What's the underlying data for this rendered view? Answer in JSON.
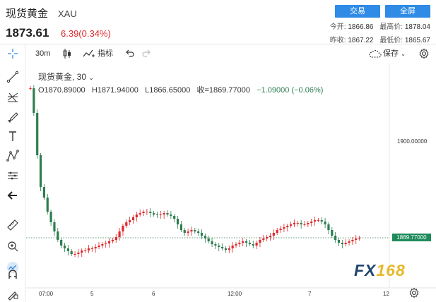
{
  "header": {
    "name": "现货黄金",
    "symbol": "XAU",
    "price": "1873.61",
    "change": "6.39(0.34%)",
    "trade_label": "交易",
    "fullscreen_label": "全屏",
    "stats": [
      {
        "label": "今开:",
        "value": "1866.86"
      },
      {
        "label": "最高价:",
        "value": "1878.04"
      },
      {
        "label": "昨收:",
        "value": "1867.22"
      },
      {
        "label": "最低价:",
        "value": "1865.67"
      }
    ]
  },
  "toolbar": {
    "interval": "30m",
    "indicator_label": "指标",
    "save_label": "保存"
  },
  "legend": {
    "title": "现货黄金, 30",
    "open": "O1870.89000",
    "high": "H1871.94000",
    "low": "L1866.65000",
    "close": "收=1869.77000",
    "change": "−1.09000",
    "change_pct": "(−0.06%)"
  },
  "axis": {
    "price_label": "1900.00000",
    "current_price": "1869.77000",
    "time_labels": [
      "07:00",
      "5",
      "6",
      "12:00",
      "7",
      "12"
    ]
  },
  "logo": {
    "fx": "FX",
    "num": "168"
  },
  "colors": {
    "up": "#e0292c",
    "down": "#2e7d4f",
    "accent": "#2f8be6"
  },
  "chart_data": {
    "type": "candlestick",
    "title": "现货黄金, 30",
    "y_ticks": [
      1900
    ],
    "last_close": 1869.77
  }
}
